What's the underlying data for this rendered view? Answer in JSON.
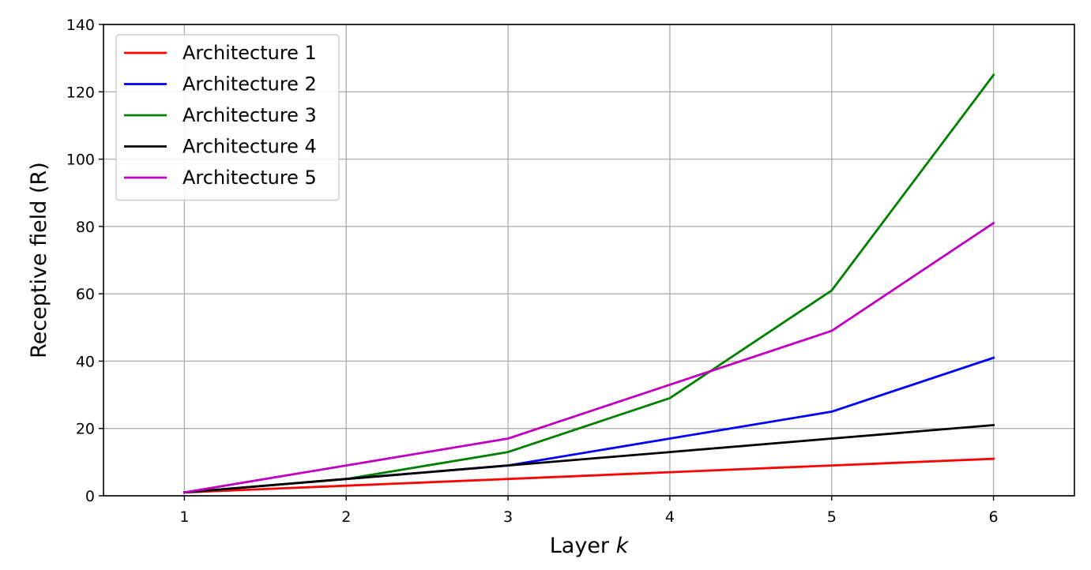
{
  "chart_data": {
    "type": "line",
    "title": "",
    "xlabel": "Layer",
    "xlabel_var": "k",
    "ylabel": "Receptive field (R)",
    "x": [
      1,
      2,
      3,
      4,
      5,
      6
    ],
    "xlim": [
      0.5,
      6.5
    ],
    "ylim": [
      0,
      140
    ],
    "xticks": [
      1,
      2,
      3,
      4,
      5,
      6
    ],
    "yticks": [
      0,
      20,
      40,
      60,
      80,
      100,
      120,
      140
    ],
    "grid": true,
    "legend_position": "top-left",
    "series": [
      {
        "name": "Architecture 1",
        "color": "#ff0000",
        "values": [
          1,
          3,
          5,
          7,
          9,
          11
        ]
      },
      {
        "name": "Architecture 2",
        "color": "#0000ff",
        "values": [
          1,
          5,
          9,
          17,
          25,
          41
        ]
      },
      {
        "name": "Architecture 3",
        "color": "#008000",
        "values": [
          1,
          5,
          13,
          29,
          61,
          125
        ]
      },
      {
        "name": "Architecture 4",
        "color": "#000000",
        "values": [
          1,
          5,
          9,
          13,
          17,
          21
        ]
      },
      {
        "name": "Architecture 5",
        "color": "#bf00bf",
        "values": [
          1,
          9,
          17,
          33,
          49,
          81
        ]
      }
    ]
  }
}
